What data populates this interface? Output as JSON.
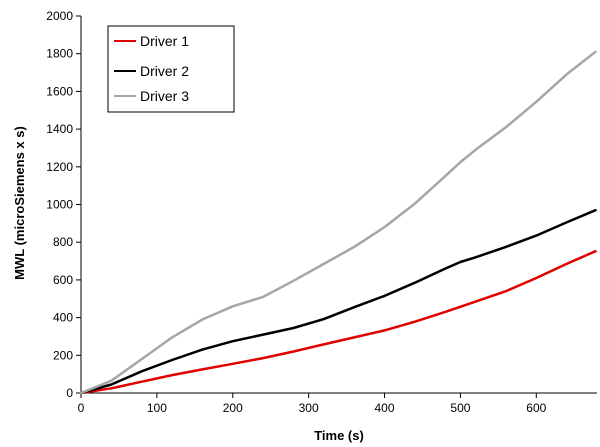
{
  "chart_data": {
    "type": "line",
    "title": "",
    "xlabel": "Time (s)",
    "ylabel": "MWL (microSiemens x s)",
    "xlim": [
      0,
      680
    ],
    "ylim": [
      0,
      2000
    ],
    "xticks": [
      0,
      100,
      200,
      300,
      400,
      500,
      600
    ],
    "yticks": [
      0,
      200,
      400,
      600,
      800,
      1000,
      1200,
      1400,
      1600,
      1800,
      2000
    ],
    "grid": false,
    "legend_position": "top-left",
    "series": [
      {
        "name": "Driver 1",
        "color": "#e00000",
        "x": [
          0,
          40,
          80,
          120,
          160,
          200,
          240,
          280,
          320,
          360,
          400,
          440,
          480,
          520,
          560,
          600,
          640,
          678
        ],
        "y": [
          0,
          25,
          60,
          95,
          125,
          155,
          185,
          220,
          258,
          295,
          332,
          378,
          430,
          485,
          540,
          610,
          685,
          752
        ]
      },
      {
        "name": "Driver 2",
        "color": "#000000",
        "x": [
          0,
          40,
          80,
          120,
          160,
          200,
          240,
          280,
          320,
          360,
          400,
          440,
          480,
          500,
          520,
          560,
          600,
          640,
          678
        ],
        "y": [
          0,
          45,
          115,
          175,
          230,
          275,
          310,
          345,
          392,
          455,
          515,
          585,
          660,
          695,
          720,
          775,
          835,
          905,
          970
        ]
      },
      {
        "name": "Driver 3",
        "color": "#a6a6a6",
        "x": [
          0,
          40,
          80,
          120,
          160,
          200,
          240,
          280,
          320,
          360,
          400,
          440,
          480,
          500,
          520,
          560,
          600,
          640,
          678
        ],
        "y": [
          0,
          65,
          180,
          295,
          390,
          460,
          510,
          595,
          685,
          775,
          880,
          1005,
          1150,
          1225,
          1290,
          1410,
          1545,
          1690,
          1810
        ]
      }
    ]
  }
}
